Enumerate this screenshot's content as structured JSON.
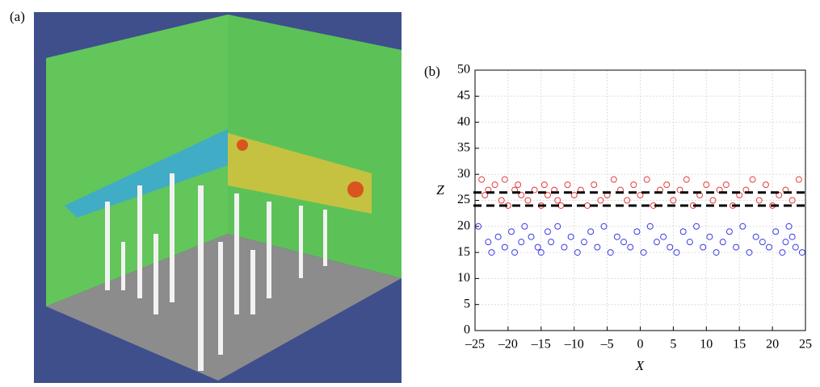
{
  "figure_labels": [
    "(a)",
    "(b)"
  ],
  "chart_data": {
    "type": "scatter",
    "xlabel": "X",
    "ylabel": "Z",
    "xlim": [
      -25,
      25
    ],
    "ylim": [
      0,
      50
    ],
    "xticks": [
      {
        "value": -25,
        "label": "–25"
      },
      {
        "value": -20,
        "label": "–20"
      },
      {
        "value": -15,
        "label": "–15"
      },
      {
        "value": -10,
        "label": "–10"
      },
      {
        "value": -5,
        "label": "–5"
      },
      0,
      5,
      10,
      15,
      20,
      25
    ],
    "yticks": [
      0,
      5,
      10,
      15,
      20,
      25,
      30,
      35,
      40,
      45,
      50
    ],
    "grid": true,
    "reference_lines": [
      {
        "y": 26.5,
        "color": "#000000",
        "style": "dashed"
      },
      {
        "y": 24,
        "color": "#000000",
        "style": "dashed"
      }
    ],
    "series": [
      {
        "color": "#e83a3a",
        "x": [
          -24,
          -23.5,
          -23,
          -22,
          -21,
          -20.5,
          -20,
          -19,
          -18.5,
          -18,
          -17,
          -16,
          -15,
          -14.5,
          -14,
          -13,
          -12.5,
          -12,
          -11,
          -10,
          -9,
          -8,
          -7,
          -6,
          -5,
          -4,
          -3,
          -2,
          -1,
          0,
          1,
          2,
          3,
          4,
          5,
          6,
          7,
          8,
          9,
          10,
          11,
          12,
          13,
          14,
          15,
          16,
          17,
          18,
          19,
          20,
          21,
          22,
          23,
          24
        ],
        "values": [
          29,
          26,
          27,
          28,
          25,
          29,
          24,
          27,
          28,
          26,
          25,
          27,
          24,
          28,
          26,
          27,
          25,
          24,
          28,
          26,
          27,
          24,
          28,
          25,
          26,
          29,
          27,
          25,
          28,
          26,
          29,
          24,
          27,
          28,
          25,
          27,
          29,
          24,
          26,
          28,
          25,
          27,
          28,
          24,
          26,
          27,
          29,
          25,
          28,
          24,
          26,
          27,
          25,
          29
        ]
      },
      {
        "color": "#3a3ae8",
        "x": [
          -24.5,
          -23,
          -22.5,
          -21.5,
          -20.5,
          -19.5,
          -19,
          -18,
          -17.5,
          -16.5,
          -15.5,
          -15,
          -14,
          -13.5,
          -12.5,
          -11.5,
          -10.5,
          -9.5,
          -8.5,
          -7.5,
          -6.5,
          -5.5,
          -4.5,
          -3.5,
          -2.5,
          -1.5,
          -0.5,
          0.5,
          1.5,
          2.5,
          3.5,
          4.5,
          5.5,
          6.5,
          7.5,
          8.5,
          9.5,
          10.5,
          11.5,
          12.5,
          13.5,
          14.5,
          15.5,
          16.5,
          17.5,
          18.5,
          19.5,
          20.5,
          21.5,
          22,
          22.5,
          23,
          23.5,
          24.5
        ],
        "values": [
          20,
          17,
          15,
          18,
          16,
          19,
          15,
          17,
          20,
          18,
          16,
          15,
          19,
          17,
          20,
          16,
          18,
          15,
          17,
          19,
          16,
          20,
          15,
          18,
          17,
          16,
          19,
          15,
          20,
          17,
          18,
          16,
          15,
          19,
          17,
          20,
          16,
          18,
          15,
          17,
          19,
          16,
          20,
          15,
          18,
          17,
          16,
          19,
          15,
          17,
          20,
          18,
          16,
          15
        ]
      }
    ]
  }
}
